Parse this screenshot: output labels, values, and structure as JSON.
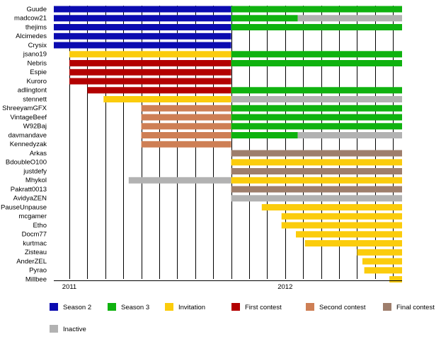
{
  "chart_data": {
    "type": "timeline",
    "x_axis": {
      "unit": "month",
      "range": [
        "2011-01",
        "2012-07"
      ],
      "ticks": [
        {
          "label": "2011",
          "at": "2011-01"
        },
        {
          "label": "2012",
          "at": "2012-01"
        }
      ]
    },
    "gridlines": "monthly vertical lines",
    "categories": {
      "season2": {
        "label": "Season 2",
        "color": "#0b0bb0"
      },
      "season3": {
        "label": "Season 3",
        "color": "#0fb20f"
      },
      "invitation": {
        "label": "Invitation",
        "color": "#fbcc0c"
      },
      "first": {
        "label": "First contest",
        "color": "#b30000"
      },
      "second": {
        "label": "Second contest",
        "color": "#ce7f55"
      },
      "final": {
        "label": "Final contest",
        "color": "#9e7e6c"
      },
      "inactive": {
        "label": "Inactive",
        "color": "#b2b2b2"
      }
    },
    "legend_order": [
      "season2",
      "season3",
      "invitation",
      "first",
      "second",
      "final",
      "inactive"
    ],
    "rows": [
      {
        "name": "Guude",
        "bars": [
          {
            "cat": "season2",
            "start": -0.9,
            "end": 9.0
          },
          {
            "cat": "season3",
            "start": 9.0,
            "end": 19.2
          }
        ]
      },
      {
        "name": "madcow21",
        "bars": [
          {
            "cat": "season2",
            "start": -0.9,
            "end": 9.0
          },
          {
            "cat": "season3",
            "start": 9.0,
            "end": 12.7
          },
          {
            "cat": "inactive",
            "start": 12.7,
            "end": 19.2
          }
        ]
      },
      {
        "name": "thejims",
        "bars": [
          {
            "cat": "season2",
            "start": -0.9,
            "end": 9.0
          },
          {
            "cat": "season3",
            "start": 9.0,
            "end": 19.2
          }
        ]
      },
      {
        "name": "Alcimedes",
        "bars": [
          {
            "cat": "season2",
            "start": -0.9,
            "end": 9.0
          }
        ]
      },
      {
        "name": "Crysix",
        "bars": [
          {
            "cat": "season2",
            "start": -0.9,
            "end": 9.0
          }
        ]
      },
      {
        "name": "jsano19",
        "bars": [
          {
            "cat": "invitation",
            "start": 0.0,
            "end": 9.0
          },
          {
            "cat": "season3",
            "start": 9.0,
            "end": 19.2
          }
        ]
      },
      {
        "name": "Nebris",
        "bars": [
          {
            "cat": "first",
            "start": 0.0,
            "end": 9.0
          },
          {
            "cat": "season3",
            "start": 9.0,
            "end": 19.2
          }
        ]
      },
      {
        "name": "Espie",
        "bars": [
          {
            "cat": "first",
            "start": 0.0,
            "end": 9.0
          }
        ]
      },
      {
        "name": "Kuroro",
        "bars": [
          {
            "cat": "first",
            "start": 0.0,
            "end": 9.0
          }
        ]
      },
      {
        "name": "adlingtont",
        "bars": [
          {
            "cat": "first",
            "start": 1.0,
            "end": 9.0
          },
          {
            "cat": "season3",
            "start": 9.0,
            "end": 19.2
          }
        ]
      },
      {
        "name": "stennett",
        "bars": [
          {
            "cat": "invitation",
            "start": 1.9,
            "end": 9.0
          },
          {
            "cat": "inactive",
            "start": 9.0,
            "end": 19.2
          }
        ]
      },
      {
        "name": "ShreeyamGFX",
        "bars": [
          {
            "cat": "second",
            "start": 4.0,
            "end": 9.0
          },
          {
            "cat": "season3",
            "start": 9.0,
            "end": 19.2
          }
        ]
      },
      {
        "name": "VintageBeef",
        "bars": [
          {
            "cat": "second",
            "start": 4.0,
            "end": 9.0
          },
          {
            "cat": "season3",
            "start": 9.0,
            "end": 19.2
          }
        ]
      },
      {
        "name": "W92Baj",
        "bars": [
          {
            "cat": "second",
            "start": 4.0,
            "end": 9.0
          },
          {
            "cat": "season3",
            "start": 9.0,
            "end": 19.2
          }
        ]
      },
      {
        "name": "davmandave",
        "bars": [
          {
            "cat": "second",
            "start": 4.0,
            "end": 9.0
          },
          {
            "cat": "season3",
            "start": 9.0,
            "end": 12.7
          },
          {
            "cat": "inactive",
            "start": 12.7,
            "end": 19.2
          }
        ]
      },
      {
        "name": "Kennedyzak",
        "bars": [
          {
            "cat": "second",
            "start": 4.0,
            "end": 9.0
          }
        ]
      },
      {
        "name": "Arkas",
        "bars": [
          {
            "cat": "final",
            "start": 9.0,
            "end": 19.2
          }
        ]
      },
      {
        "name": "BdoubleO100",
        "bars": [
          {
            "cat": "invitation",
            "start": 9.0,
            "end": 19.2
          }
        ]
      },
      {
        "name": "justdefy",
        "bars": [
          {
            "cat": "final",
            "start": 9.0,
            "end": 19.2
          }
        ]
      },
      {
        "name": "Mhykol",
        "bars": [
          {
            "cat": "inactive",
            "start": 3.3,
            "end": 9.0
          },
          {
            "cat": "invitation",
            "start": 9.0,
            "end": 19.2
          }
        ]
      },
      {
        "name": "Pakratt0013",
        "bars": [
          {
            "cat": "final",
            "start": 9.0,
            "end": 19.2
          }
        ]
      },
      {
        "name": "AvidyaZEN",
        "bars": [
          {
            "cat": "inactive",
            "start": 9.0,
            "end": 19.2
          }
        ]
      },
      {
        "name": "PauseUnpause",
        "bars": [
          {
            "cat": "invitation",
            "start": 10.7,
            "end": 19.2
          }
        ]
      },
      {
        "name": "mcgamer",
        "bars": [
          {
            "cat": "invitation",
            "start": 11.8,
            "end": 19.2
          }
        ]
      },
      {
        "name": "Etho",
        "bars": [
          {
            "cat": "invitation",
            "start": 11.8,
            "end": 19.2
          }
        ]
      },
      {
        "name": "Docm77",
        "bars": [
          {
            "cat": "invitation",
            "start": 12.6,
            "end": 19.2
          }
        ]
      },
      {
        "name": "kurtmac",
        "bars": [
          {
            "cat": "invitation",
            "start": 13.1,
            "end": 19.2
          }
        ]
      },
      {
        "name": "Zisteau",
        "bars": [
          {
            "cat": "invitation",
            "start": 16.0,
            "end": 19.2
          }
        ]
      },
      {
        "name": "AnderZEL",
        "bars": [
          {
            "cat": "invitation",
            "start": 16.3,
            "end": 19.2
          }
        ]
      },
      {
        "name": "Pyrao",
        "bars": [
          {
            "cat": "invitation",
            "start": 16.4,
            "end": 19.2
          }
        ]
      },
      {
        "name": "Millbee",
        "bars": [
          {
            "cat": "invitation",
            "start": 17.8,
            "end": 19.2
          }
        ]
      }
    ]
  }
}
